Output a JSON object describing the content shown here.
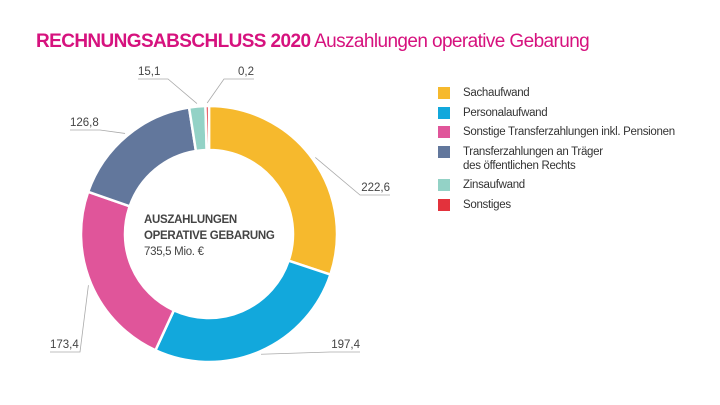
{
  "title": {
    "bold": "RECHNUNGSABSCHLUSS 2020",
    "rest": "Auszahlungen operative Gebarung"
  },
  "center": {
    "line1": "AUSZAHLUNGEN",
    "line2": "OPERATIVE GEBARUNG",
    "total": "735,5 Mio. €"
  },
  "chart_data": {
    "type": "pie",
    "donut": true,
    "categories": [
      "Sachaufwand",
      "Personalaufwand",
      "Sonstige Transferzahlungen inkl. Pensionen",
      "Transferzahlungen an Träger des öffentlichen Rechts",
      "Zinsaufwand",
      "Sonstiges"
    ],
    "values": [
      222.6,
      197.4,
      173.4,
      126.8,
      15.1,
      0.2
    ],
    "value_labels": [
      "222,6",
      "197,4",
      "173,4",
      "126,8",
      "15,1",
      "0,2"
    ],
    "colors": [
      "#f6b92d",
      "#12a8dc",
      "#e0559a",
      "#62779c",
      "#93d2c6",
      "#e3323c"
    ],
    "legend_placement": "right"
  },
  "legend": [
    {
      "label": "Sachaufwand"
    },
    {
      "label": "Personalaufwand"
    },
    {
      "label": "Sonstige Transferzahlungen inkl. Pensionen"
    },
    {
      "label": "Transferzahlungen an Träger",
      "label2": "des öffentlichen Rechts"
    },
    {
      "label": "Zinsaufwand"
    },
    {
      "label": "Sonstiges"
    }
  ]
}
